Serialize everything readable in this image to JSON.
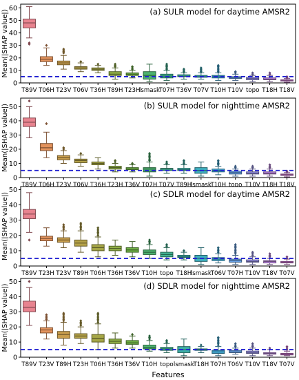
{
  "figure": {
    "xlabel": "Features",
    "ylabel": "Mean(|SHAP value|)"
  },
  "reference_line": {
    "y": 5,
    "color": "#1f1fd0",
    "style": "dashed"
  },
  "palette": [
    "#e8838f",
    "#e3935d",
    "#c99e4d",
    "#b5a249",
    "#a5a646",
    "#8fae46",
    "#6fb046",
    "#4db36f",
    "#42b292",
    "#3eb1a8",
    "#3fb0bf",
    "#44acd6",
    "#6aa3e8",
    "#9b95ea",
    "#c089e5",
    "#d880dd",
    "#e281c3"
  ],
  "chart_data": [
    {
      "type": "box",
      "title": "(a) SULR model for daytime AMSR2",
      "xlabel": "Features",
      "ylabel": "Mean(|SHAP value|)",
      "ylim": [
        0,
        63
      ],
      "yticks": [
        0,
        10,
        20,
        30,
        40,
        50,
        60
      ],
      "categories": [
        "T89V",
        "T06H",
        "T23V",
        "T06V",
        "T36H",
        "T89H",
        "T23H",
        "lsmask",
        "T07H",
        "T36V",
        "T07V",
        "T10H",
        "T10V",
        "topo",
        "T18H",
        "T18V"
      ],
      "boxes": [
        {
          "min": 36,
          "q1": 44,
          "median": 48,
          "q3": 51,
          "max": 61,
          "outliers": [
            32,
            31
          ]
        },
        {
          "min": 14,
          "q1": 17,
          "median": 19,
          "q3": 21,
          "max": 28,
          "outliers": [
            30
          ]
        },
        {
          "min": 11,
          "q1": 14.5,
          "median": 16,
          "q3": 17.5,
          "max": 22,
          "outliers": [
            24,
            25,
            26,
            27
          ]
        },
        {
          "min": 9,
          "q1": 11,
          "median": 12,
          "q3": 13,
          "max": 16,
          "outliers": [
            17
          ]
        },
        {
          "min": 8,
          "q1": 10,
          "median": 11,
          "q3": 12,
          "max": 14,
          "outliers": [
            15
          ]
        },
        {
          "min": 3,
          "q1": 6,
          "median": 7,
          "q3": 9,
          "max": 12,
          "outliers": [
            13,
            14,
            15
          ]
        },
        {
          "min": 4,
          "q1": 6,
          "median": 7,
          "q3": 8,
          "max": 10,
          "outliers": [
            11,
            12,
            13
          ]
        },
        {
          "min": 1,
          "q1": 3,
          "median": 6,
          "q3": 9,
          "max": 15,
          "outliers": []
        },
        {
          "min": 2,
          "q1": 4,
          "median": 5.5,
          "q3": 7,
          "max": 10,
          "outliers": [
            11,
            12,
            13,
            14,
            15
          ]
        },
        {
          "min": 3,
          "q1": 5,
          "median": 5.5,
          "q3": 6.5,
          "max": 8,
          "outliers": [
            9,
            10,
            11
          ]
        },
        {
          "min": 3,
          "q1": 4.5,
          "median": 5,
          "q3": 6,
          "max": 8,
          "outliers": [
            9,
            10,
            11,
            12
          ]
        },
        {
          "min": 2,
          "q1": 4,
          "median": 5,
          "q3": 6,
          "max": 8,
          "outliers": [
            9,
            10,
            11,
            12,
            13,
            14
          ]
        },
        {
          "min": 2,
          "q1": 3.5,
          "median": 4,
          "q3": 5,
          "max": 7,
          "outliers": [
            8,
            9
          ]
        },
        {
          "min": 1,
          "q1": 2.5,
          "median": 3.5,
          "q3": 4.5,
          "max": 6,
          "outliers": [
            7,
            8
          ]
        },
        {
          "min": 1,
          "q1": 2.5,
          "median": 3,
          "q3": 4,
          "max": 6,
          "outliers": [
            7,
            8
          ]
        },
        {
          "min": 0.5,
          "q1": 1.5,
          "median": 2,
          "q3": 2.5,
          "max": 3.5,
          "outliers": [
            4,
            4.5,
            5
          ]
        }
      ]
    },
    {
      "type": "box",
      "title": "(b) SULR model for nighttime AMSR2",
      "xlabel": "Features",
      "ylabel": "Mean(|SHAP value|)",
      "ylim": [
        0,
        56
      ],
      "yticks": [
        0,
        10,
        20,
        30,
        40,
        50
      ],
      "categories": [
        "T89V",
        "T06H",
        "T23V",
        "T06V",
        "T36H",
        "T23H",
        "T36V",
        "T07H",
        "T07V",
        "T89H",
        "lsmask",
        "T10H",
        "topo",
        "T10V",
        "T18H",
        "T18V"
      ],
      "boxes": [
        {
          "min": 28,
          "q1": 36,
          "median": 39,
          "q3": 42,
          "max": 50,
          "outliers": [
            54
          ]
        },
        {
          "min": 14,
          "q1": 19,
          "median": 21,
          "q3": 24,
          "max": 32,
          "outliers": [
            38
          ]
        },
        {
          "min": 10,
          "q1": 12.5,
          "median": 14,
          "q3": 15.5,
          "max": 19,
          "outliers": [
            20,
            21
          ]
        },
        {
          "min": 8,
          "q1": 10.5,
          "median": 12,
          "q3": 13,
          "max": 16,
          "outliers": [
            17
          ]
        },
        {
          "min": 6,
          "q1": 9,
          "median": 10,
          "q3": 11,
          "max": 14,
          "outliers": []
        },
        {
          "min": 4,
          "q1": 6,
          "median": 7,
          "q3": 8,
          "max": 10,
          "outliers": [
            11,
            12
          ]
        },
        {
          "min": 4,
          "q1": 5.5,
          "median": 6,
          "q3": 7,
          "max": 9,
          "outliers": [
            10
          ]
        },
        {
          "min": 1,
          "q1": 4,
          "median": 6,
          "q3": 7,
          "max": 11,
          "outliers": [
            12,
            13,
            14,
            15,
            16,
            17
          ]
        },
        {
          "min": 3,
          "q1": 5,
          "median": 6,
          "q3": 6.5,
          "max": 9,
          "outliers": [
            10,
            11
          ]
        },
        {
          "min": 3,
          "q1": 5,
          "median": 5.5,
          "q3": 6.5,
          "max": 9,
          "outliers": [
            10,
            11,
            12
          ]
        },
        {
          "min": 1,
          "q1": 3,
          "median": 5,
          "q3": 7,
          "max": 11,
          "outliers": []
        },
        {
          "min": 2,
          "q1": 4,
          "median": 5,
          "q3": 6,
          "max": 8,
          "outliers": [
            9,
            10,
            11,
            12
          ]
        },
        {
          "min": 1,
          "q1": 2.5,
          "median": 3.5,
          "q3": 4.5,
          "max": 6,
          "outliers": [
            7,
            8
          ]
        },
        {
          "min": 1,
          "q1": 2.5,
          "median": 3,
          "q3": 4,
          "max": 6,
          "outliers": [
            7,
            8
          ]
        },
        {
          "min": 1,
          "q1": 2.5,
          "median": 3,
          "q3": 4,
          "max": 6,
          "outliers": [
            7,
            8,
            9
          ]
        },
        {
          "min": 0.5,
          "q1": 1.5,
          "median": 2,
          "q3": 2.5,
          "max": 3.5,
          "outliers": [
            4,
            4.5
          ]
        }
      ]
    },
    {
      "type": "box",
      "title": "(c) SDLR model for daytime AMSR2",
      "xlabel": "Features",
      "ylabel": "Mean(|SHAP value|)",
      "ylim": [
        0,
        52
      ],
      "yticks": [
        0,
        10,
        20,
        30,
        40,
        50
      ],
      "categories": [
        "T89V",
        "T23H",
        "T23V",
        "T89H",
        "T06H",
        "T36H",
        "T36V",
        "T10H",
        "topo",
        "T18H",
        "lsmask",
        "T06V",
        "T07H",
        "T10V",
        "T18V",
        "T07V"
      ],
      "boxes": [
        {
          "min": 22,
          "q1": 31,
          "median": 34,
          "q3": 37,
          "max": 48,
          "outliers": [
            17
          ]
        },
        {
          "min": 13,
          "q1": 16.5,
          "median": 18,
          "q3": 19.5,
          "max": 25,
          "outliers": []
        },
        {
          "min": 12,
          "q1": 15.5,
          "median": 17,
          "q3": 18.5,
          "max": 23,
          "outliers": [
            24,
            25,
            26,
            27
          ]
        },
        {
          "min": 9,
          "q1": 13,
          "median": 15,
          "q3": 17,
          "max": 23,
          "outliers": [
            24,
            25,
            26,
            27,
            28
          ]
        },
        {
          "min": 6,
          "q1": 10,
          "median": 12,
          "q3": 14,
          "max": 19,
          "outliers": [
            20,
            21,
            22,
            23,
            24,
            25
          ]
        },
        {
          "min": 7,
          "q1": 10,
          "median": 11.5,
          "q3": 13,
          "max": 17,
          "outliers": []
        },
        {
          "min": 6,
          "q1": 9,
          "median": 10.5,
          "q3": 12,
          "max": 16,
          "outliers": []
        },
        {
          "min": 5,
          "q1": 7.5,
          "median": 9,
          "q3": 10.5,
          "max": 14,
          "outliers": [
            15,
            16,
            17
          ]
        },
        {
          "min": 4,
          "q1": 6,
          "median": 7.5,
          "q3": 9,
          "max": 12,
          "outliers": [
            13,
            14
          ]
        },
        {
          "min": 4,
          "q1": 5.5,
          "median": 6,
          "q3": 7,
          "max": 9,
          "outliers": [
            10
          ]
        },
        {
          "min": 1,
          "q1": 3,
          "median": 5,
          "q3": 7,
          "max": 12,
          "outliers": []
        },
        {
          "min": 2,
          "q1": 3.5,
          "median": 4.5,
          "q3": 5.5,
          "max": 8,
          "outliers": [
            9,
            10,
            11,
            12
          ]
        },
        {
          "min": 1,
          "q1": 2.5,
          "median": 3.5,
          "q3": 4.5,
          "max": 7,
          "outliers": [
            8,
            9,
            10,
            11,
            12,
            13,
            14
          ]
        },
        {
          "min": 1,
          "q1": 2.5,
          "median": 3,
          "q3": 4,
          "max": 6,
          "outliers": [
            7,
            8,
            9
          ]
        },
        {
          "min": 1,
          "q1": 2,
          "median": 3,
          "q3": 3.5,
          "max": 5,
          "outliers": [
            6,
            7,
            8
          ]
        },
        {
          "min": 1,
          "q1": 2,
          "median": 2.5,
          "q3": 3,
          "max": 4.5,
          "outliers": [
            5,
            6
          ]
        }
      ]
    },
    {
      "type": "box",
      "title": "(d) SDLR model for nighttime AMSR2",
      "xlabel": "Features",
      "ylabel": "Mean(|SHAP value|)",
      "ylim": [
        0,
        52
      ],
      "yticks": [
        0,
        10,
        20,
        30,
        40,
        50
      ],
      "categories": [
        "T89V",
        "T23V",
        "T89H",
        "T23H",
        "T06H",
        "T36H",
        "T36V",
        "T10H",
        "topo",
        "lsmask",
        "T18H",
        "T07H",
        "T06V",
        "T10V",
        "T18V",
        "T07V"
      ],
      "boxes": [
        {
          "min": 21,
          "q1": 30,
          "median": 33,
          "q3": 37,
          "max": 46,
          "outliers": [
            50
          ]
        },
        {
          "min": 12,
          "q1": 16,
          "median": 18,
          "q3": 19.5,
          "max": 24,
          "outliers": [
            25,
            26,
            27,
            28
          ]
        },
        {
          "min": 8,
          "q1": 12.5,
          "median": 15,
          "q3": 17,
          "max": 23,
          "outliers": [
            24,
            25,
            26,
            27,
            28,
            29
          ]
        },
        {
          "min": 9,
          "q1": 12.5,
          "median": 14,
          "q3": 15.5,
          "max": 20,
          "outliers": [
            21,
            22,
            23,
            24
          ]
        },
        {
          "min": 5,
          "q1": 10,
          "median": 12.5,
          "q3": 15,
          "max": 22,
          "outliers": [
            23,
            24,
            25,
            26,
            27,
            28,
            29
          ]
        },
        {
          "min": 6,
          "q1": 9,
          "median": 10.5,
          "q3": 12,
          "max": 16,
          "outliers": []
        },
        {
          "min": 6,
          "q1": 8.5,
          "median": 9.5,
          "q3": 11,
          "max": 14,
          "outliers": [
            15
          ]
        },
        {
          "min": 4,
          "q1": 5.5,
          "median": 6.5,
          "q3": 8,
          "max": 11,
          "outliers": [
            12,
            13,
            14
          ]
        },
        {
          "min": 3,
          "q1": 4.5,
          "median": 5.5,
          "q3": 6.5,
          "max": 9,
          "outliers": [
            10,
            11
          ]
        },
        {
          "min": 1,
          "q1": 3,
          "median": 5,
          "q3": 7,
          "max": 12,
          "outliers": []
        },
        {
          "min": 3,
          "q1": 4.5,
          "median": 5,
          "q3": 5.5,
          "max": 7,
          "outliers": [
            8
          ]
        },
        {
          "min": 1,
          "q1": 2.5,
          "median": 3.5,
          "q3": 4.5,
          "max": 7,
          "outliers": [
            8,
            9,
            10,
            11,
            12,
            13
          ]
        },
        {
          "min": 2,
          "q1": 3,
          "median": 3.5,
          "q3": 4.5,
          "max": 6,
          "outliers": [
            7,
            8,
            9
          ]
        },
        {
          "min": 1,
          "q1": 2.5,
          "median": 3,
          "q3": 4,
          "max": 6,
          "outliers": [
            7,
            8,
            9
          ]
        },
        {
          "min": 1,
          "q1": 2,
          "median": 2.5,
          "q3": 3,
          "max": 5,
          "outliers": [
            6
          ]
        },
        {
          "min": 1,
          "q1": 1.5,
          "median": 2,
          "q3": 2.5,
          "max": 4,
          "outliers": [
            5,
            6,
            7
          ]
        }
      ]
    }
  ]
}
